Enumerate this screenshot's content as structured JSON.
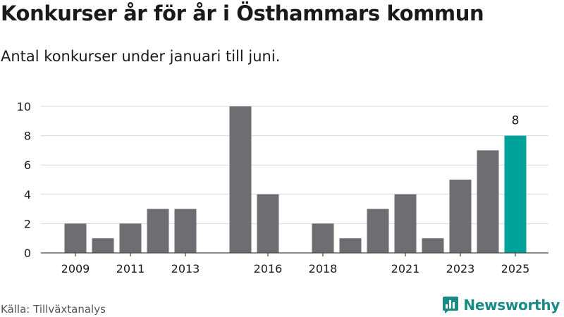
{
  "header": {
    "title": "Konkurser år för år i Östhammars kommun",
    "subtitle": "Antal konkurser under januari till juni."
  },
  "footer": {
    "source": "Källa: Tillväxtanalys",
    "brand": "Newsworthy"
  },
  "colors": {
    "bar": "#6e6d72",
    "highlight": "#00a39a",
    "grid": "#d9d9d9",
    "axis": "#444444",
    "brand": "#1a8a85"
  },
  "chart_data": {
    "type": "bar",
    "x": [
      2009,
      2010,
      2011,
      2012,
      2013,
      2014,
      2015,
      2016,
      2017,
      2018,
      2019,
      2020,
      2021,
      2022,
      2023,
      2024,
      2025
    ],
    "values": [
      2,
      1,
      2,
      3,
      3,
      0,
      10,
      4,
      0,
      2,
      1,
      3,
      4,
      1,
      5,
      7,
      8
    ],
    "x_tick_labels": [
      "2009",
      "2011",
      "2013",
      "2016",
      "2018",
      "2021",
      "2023",
      "2025"
    ],
    "y_ticks": [
      0,
      2,
      4,
      6,
      8,
      10
    ],
    "ylim": [
      0,
      10
    ],
    "highlight": {
      "x": 2025,
      "label": "8"
    },
    "grid": true,
    "legend": "none"
  }
}
